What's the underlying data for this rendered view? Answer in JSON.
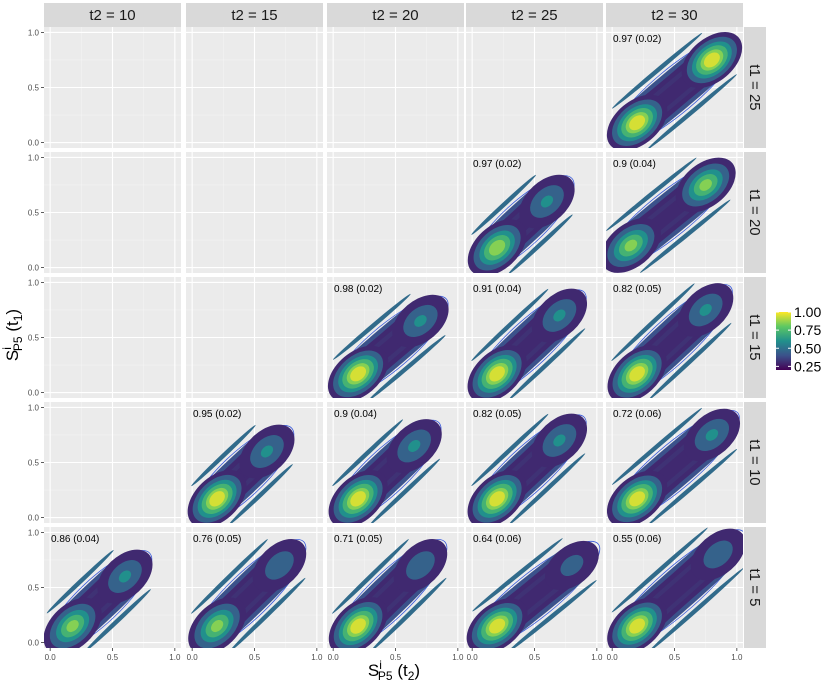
{
  "chart_data": {
    "type": "heatmap",
    "facet_cols": {
      "var": "t2",
      "values": [
        10,
        15,
        20,
        25,
        30
      ],
      "strip_labels": [
        "t2 = 10",
        "t2 = 15",
        "t2 = 20",
        "t2 = 25",
        "t2 = 30"
      ]
    },
    "facet_rows": {
      "var": "t1",
      "values": [
        25,
        20,
        15,
        10,
        5
      ],
      "strip_labels": [
        "t1 = 25",
        "t1 = 20",
        "t1 = 15",
        "t1 = 10",
        "t1 = 5"
      ]
    },
    "xlabel": {
      "base": "S",
      "sup": "i",
      "sub": "P5",
      "arg": "(t",
      "arg_sub": "2",
      "close": ")"
    },
    "ylabel": {
      "base": "S",
      "sup": "i",
      "sub": "P5",
      "arg": "(t",
      "arg_sub": "1",
      "close": ")"
    },
    "xlim": [
      0,
      1
    ],
    "ylim": [
      0,
      1
    ],
    "x_ticks": [
      "0.0",
      "0.5",
      "1.0"
    ],
    "y_ticks": [
      "0.0",
      "0.5",
      "1.0"
    ],
    "legend": {
      "placement": "right",
      "values": [
        "1.00",
        "0.75",
        "0.50",
        "0.25"
      ],
      "range": [
        0.2,
        1.0
      ],
      "colormap": "viridis"
    },
    "panels": [
      {
        "t1": 25,
        "t2": 30,
        "label": "0.97 (0.02)",
        "peaks": [
          {
            "x": 0.2,
            "y": 0.18,
            "v": 1.0
          },
          {
            "x": 0.8,
            "y": 0.75,
            "v": 1.0
          }
        ]
      },
      {
        "t1": 20,
        "t2": 25,
        "label": "0.97 (0.02)",
        "peaks": [
          {
            "x": 0.2,
            "y": 0.18,
            "v": 0.9
          },
          {
            "x": 0.6,
            "y": 0.6,
            "v": 0.6
          }
        ]
      },
      {
        "t1": 20,
        "t2": 30,
        "label": "0.9 (0.04)",
        "peaks": [
          {
            "x": 0.15,
            "y": 0.2,
            "v": 0.85
          },
          {
            "x": 0.75,
            "y": 0.75,
            "v": 0.85
          }
        ]
      },
      {
        "t1": 15,
        "t2": 20,
        "label": "0.98 (0.02)",
        "peaks": [
          {
            "x": 0.2,
            "y": 0.17,
            "v": 1.0
          },
          {
            "x": 0.7,
            "y": 0.65,
            "v": 0.6
          }
        ]
      },
      {
        "t1": 15,
        "t2": 25,
        "label": "0.91 (0.04)",
        "peaks": [
          {
            "x": 0.2,
            "y": 0.17,
            "v": 1.0
          },
          {
            "x": 0.7,
            "y": 0.7,
            "v": 0.6
          }
        ]
      },
      {
        "t1": 15,
        "t2": 30,
        "label": "0.82 (0.05)",
        "peaks": [
          {
            "x": 0.2,
            "y": 0.17,
            "v": 1.0
          },
          {
            "x": 0.75,
            "y": 0.75,
            "v": 0.6
          }
        ]
      },
      {
        "t1": 10,
        "t2": 15,
        "label": "0.95 (0.02)",
        "peaks": [
          {
            "x": 0.2,
            "y": 0.17,
            "v": 1.0
          },
          {
            "x": 0.6,
            "y": 0.6,
            "v": 0.6
          }
        ]
      },
      {
        "t1": 10,
        "t2": 20,
        "label": "0.9 (0.04)",
        "peaks": [
          {
            "x": 0.2,
            "y": 0.17,
            "v": 1.0
          },
          {
            "x": 0.65,
            "y": 0.65,
            "v": 0.6
          }
        ]
      },
      {
        "t1": 10,
        "t2": 25,
        "label": "0.82 (0.05)",
        "peaks": [
          {
            "x": 0.2,
            "y": 0.17,
            "v": 1.0
          },
          {
            "x": 0.7,
            "y": 0.7,
            "v": 0.6
          }
        ]
      },
      {
        "t1": 10,
        "t2": 30,
        "label": "0.72 (0.06)",
        "peaks": [
          {
            "x": 0.2,
            "y": 0.17,
            "v": 1.0
          },
          {
            "x": 0.8,
            "y": 0.75,
            "v": 0.6
          }
        ]
      },
      {
        "t1": 5,
        "t2": 10,
        "label": "0.86 (0.04)",
        "peaks": [
          {
            "x": 0.18,
            "y": 0.15,
            "v": 0.85
          },
          {
            "x": 0.6,
            "y": 0.6,
            "v": 0.6
          }
        ]
      },
      {
        "t1": 5,
        "t2": 15,
        "label": "0.76 (0.05)",
        "peaks": [
          {
            "x": 0.2,
            "y": 0.15,
            "v": 0.85
          },
          {
            "x": 0.7,
            "y": 0.7,
            "v": 0.55
          }
        ]
      },
      {
        "t1": 5,
        "t2": 20,
        "label": "0.71 (0.05)",
        "peaks": [
          {
            "x": 0.2,
            "y": 0.15,
            "v": 1.0
          },
          {
            "x": 0.7,
            "y": 0.7,
            "v": 0.55
          }
        ]
      },
      {
        "t1": 5,
        "t2": 25,
        "label": "0.64 (0.06)",
        "peaks": [
          {
            "x": 0.2,
            "y": 0.15,
            "v": 1.0
          },
          {
            "x": 0.8,
            "y": 0.7,
            "v": 0.5
          }
        ]
      },
      {
        "t1": 5,
        "t2": 30,
        "label": "0.55 (0.06)",
        "peaks": [
          {
            "x": 0.2,
            "y": 0.15,
            "v": 1.0
          },
          {
            "x": 0.85,
            "y": 0.8,
            "v": 0.55
          }
        ]
      }
    ]
  }
}
